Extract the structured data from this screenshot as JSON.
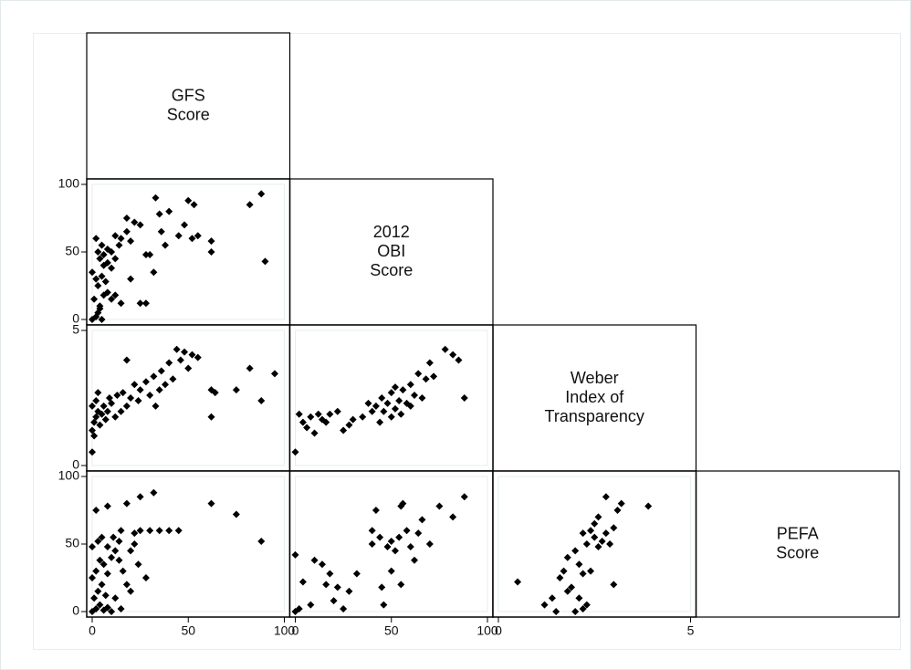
{
  "diagonal_labels": [
    [
      "GFS",
      "Score"
    ],
    [
      "2012",
      "OBI",
      "Score"
    ],
    [
      "Weber",
      "Index of",
      "Transparency"
    ],
    [
      "PEFA",
      "Score"
    ]
  ],
  "chart_data": [
    {
      "type": "scatter",
      "color": "#000000",
      "xlim": [
        0,
        100
      ],
      "ylim": [
        0,
        100
      ],
      "yticks": [
        0,
        50,
        100
      ],
      "x": [
        2,
        3,
        5,
        4,
        1,
        6,
        8,
        10,
        12,
        15,
        3,
        2,
        5,
        0,
        7,
        4,
        3,
        5,
        6,
        8,
        10,
        12,
        14,
        2,
        8,
        10,
        15,
        18,
        20,
        22,
        25,
        18,
        28,
        30,
        33,
        35,
        36,
        40,
        38,
        45,
        48,
        50,
        53,
        55,
        52,
        28,
        25,
        62,
        62,
        82,
        88,
        90,
        32,
        20,
        12,
        6,
        4,
        0
      ],
      "values": [
        2,
        5,
        0,
        10,
        15,
        18,
        20,
        15,
        18,
        12,
        25,
        30,
        32,
        35,
        28,
        45,
        50,
        55,
        48,
        52,
        50,
        45,
        55,
        60,
        42,
        38,
        60,
        65,
        58,
        72,
        70,
        75,
        48,
        48,
        90,
        78,
        65,
        80,
        55,
        62,
        70,
        88,
        85,
        62,
        60,
        12,
        12,
        58,
        50,
        85,
        93,
        43,
        35,
        30,
        62,
        40,
        8,
        0
      ]
    },
    {
      "type": "scatter",
      "color": "#000000",
      "xlim": [
        0,
        100
      ],
      "ylim": [
        0,
        5
      ],
      "yticks": [
        0,
        5
      ],
      "x": [
        0,
        1,
        2,
        3,
        0,
        2,
        4,
        5,
        6,
        7,
        8,
        9,
        10,
        12,
        13,
        15,
        16,
        18,
        20,
        22,
        24,
        25,
        28,
        30,
        32,
        33,
        35,
        36,
        38,
        40,
        42,
        44,
        46,
        48,
        50,
        52,
        55,
        62,
        64,
        62,
        75,
        82,
        88,
        95,
        0,
        18,
        3,
        1
      ],
      "values": [
        1.3,
        1.6,
        1.8,
        2.0,
        2.2,
        2.4,
        1.5,
        1.9,
        2.2,
        1.7,
        2.0,
        2.5,
        2.3,
        1.8,
        2.6,
        2.0,
        2.7,
        2.2,
        2.5,
        3.0,
        2.4,
        2.8,
        3.1,
        2.6,
        3.3,
        2.2,
        2.8,
        3.5,
        3.0,
        3.8,
        3.2,
        4.3,
        3.9,
        4.2,
        3.6,
        4.1,
        4.0,
        2.8,
        2.7,
        1.8,
        2.8,
        3.6,
        2.4,
        3.4,
        0.5,
        3.9,
        2.7,
        1.1
      ]
    },
    {
      "type": "scatter",
      "color": "#000000",
      "xlim": [
        0,
        100
      ],
      "ylim": [
        0,
        5
      ],
      "x": [
        0,
        2,
        4,
        6,
        8,
        10,
        12,
        14,
        16,
        18,
        22,
        25,
        28,
        30,
        35,
        38,
        40,
        42,
        44,
        45,
        46,
        48,
        50,
        50,
        52,
        54,
        55,
        56,
        58,
        60,
        62,
        64,
        66,
        68,
        70,
        72,
        78,
        82,
        85,
        88,
        60,
        52
      ],
      "values": [
        0.5,
        1.9,
        1.6,
        1.4,
        1.8,
        1.2,
        1.9,
        1.7,
        1.6,
        1.9,
        2.0,
        1.3,
        1.5,
        1.7,
        1.8,
        2.3,
        2.0,
        2.2,
        1.6,
        2.5,
        2.0,
        2.3,
        2.7,
        1.8,
        2.1,
        2.4,
        1.9,
        2.8,
        2.3,
        3.0,
        2.6,
        3.4,
        2.5,
        3.2,
        3.8,
        3.3,
        4.3,
        4.1,
        3.9,
        2.5,
        2.2,
        2.9
      ]
    },
    {
      "type": "scatter",
      "color": "#000000",
      "xlim": [
        0,
        100
      ],
      "ylim": [
        0,
        100
      ],
      "xticks": [
        0,
        50,
        100
      ],
      "yticks": [
        0,
        50,
        100
      ],
      "x": [
        0,
        2,
        4,
        6,
        8,
        10,
        15,
        1,
        3,
        5,
        7,
        0,
        2,
        4,
        6,
        8,
        10,
        12,
        14,
        16,
        18,
        20,
        22,
        24,
        0,
        3,
        5,
        8,
        11,
        14,
        2,
        8,
        18,
        25,
        32,
        22,
        25,
        30,
        35,
        40,
        45,
        28,
        15,
        62,
        75,
        88,
        20,
        12
      ],
      "values": [
        0,
        2,
        5,
        1,
        3,
        0,
        2,
        10,
        15,
        20,
        12,
        25,
        30,
        38,
        35,
        28,
        40,
        45,
        38,
        30,
        20,
        45,
        50,
        35,
        48,
        52,
        55,
        48,
        55,
        52,
        75,
        78,
        80,
        85,
        88,
        58,
        60,
        60,
        60,
        60,
        60,
        25,
        60,
        80,
        72,
        52,
        15,
        10
      ]
    },
    {
      "type": "scatter",
      "color": "#000000",
      "xlim": [
        0,
        100
      ],
      "ylim": [
        0,
        100
      ],
      "xticks": [
        0,
        50,
        100
      ],
      "x": [
        0,
        2,
        4,
        8,
        10,
        14,
        16,
        18,
        20,
        22,
        25,
        28,
        32,
        40,
        42,
        44,
        45,
        46,
        48,
        50,
        52,
        54,
        55,
        56,
        58,
        60,
        62,
        64,
        66,
        70,
        75,
        82,
        88,
        50,
        40,
        55,
        0
      ],
      "values": [
        0,
        2,
        22,
        5,
        38,
        35,
        20,
        28,
        8,
        18,
        2,
        15,
        28,
        60,
        75,
        55,
        18,
        5,
        48,
        52,
        45,
        55,
        78,
        80,
        60,
        48,
        38,
        58,
        68,
        50,
        78,
        70,
        85,
        30,
        50,
        20,
        42
      ]
    },
    {
      "type": "scatter",
      "color": "#000000",
      "xlim": [
        0,
        5
      ],
      "ylim": [
        0,
        100
      ],
      "xticks": [
        0,
        5
      ],
      "x": [
        0.5,
        1.2,
        1.5,
        1.6,
        1.7,
        1.8,
        1.9,
        2.0,
        2.1,
        2.2,
        1.8,
        2.0,
        2.1,
        2.2,
        2.3,
        2.4,
        2.4,
        2.5,
        2.5,
        2.6,
        2.6,
        2.7,
        2.8,
        2.8,
        2.9,
        3.0,
        3.0,
        3.1,
        3.2,
        3.9,
        2.2,
        2.3,
        1.4
      ],
      "values": [
        22,
        5,
        0,
        25,
        30,
        15,
        18,
        0,
        10,
        28,
        40,
        45,
        35,
        58,
        50,
        60,
        30,
        55,
        65,
        48,
        70,
        52,
        85,
        58,
        50,
        62,
        20,
        75,
        80,
        78,
        2,
        5,
        10
      ]
    }
  ]
}
